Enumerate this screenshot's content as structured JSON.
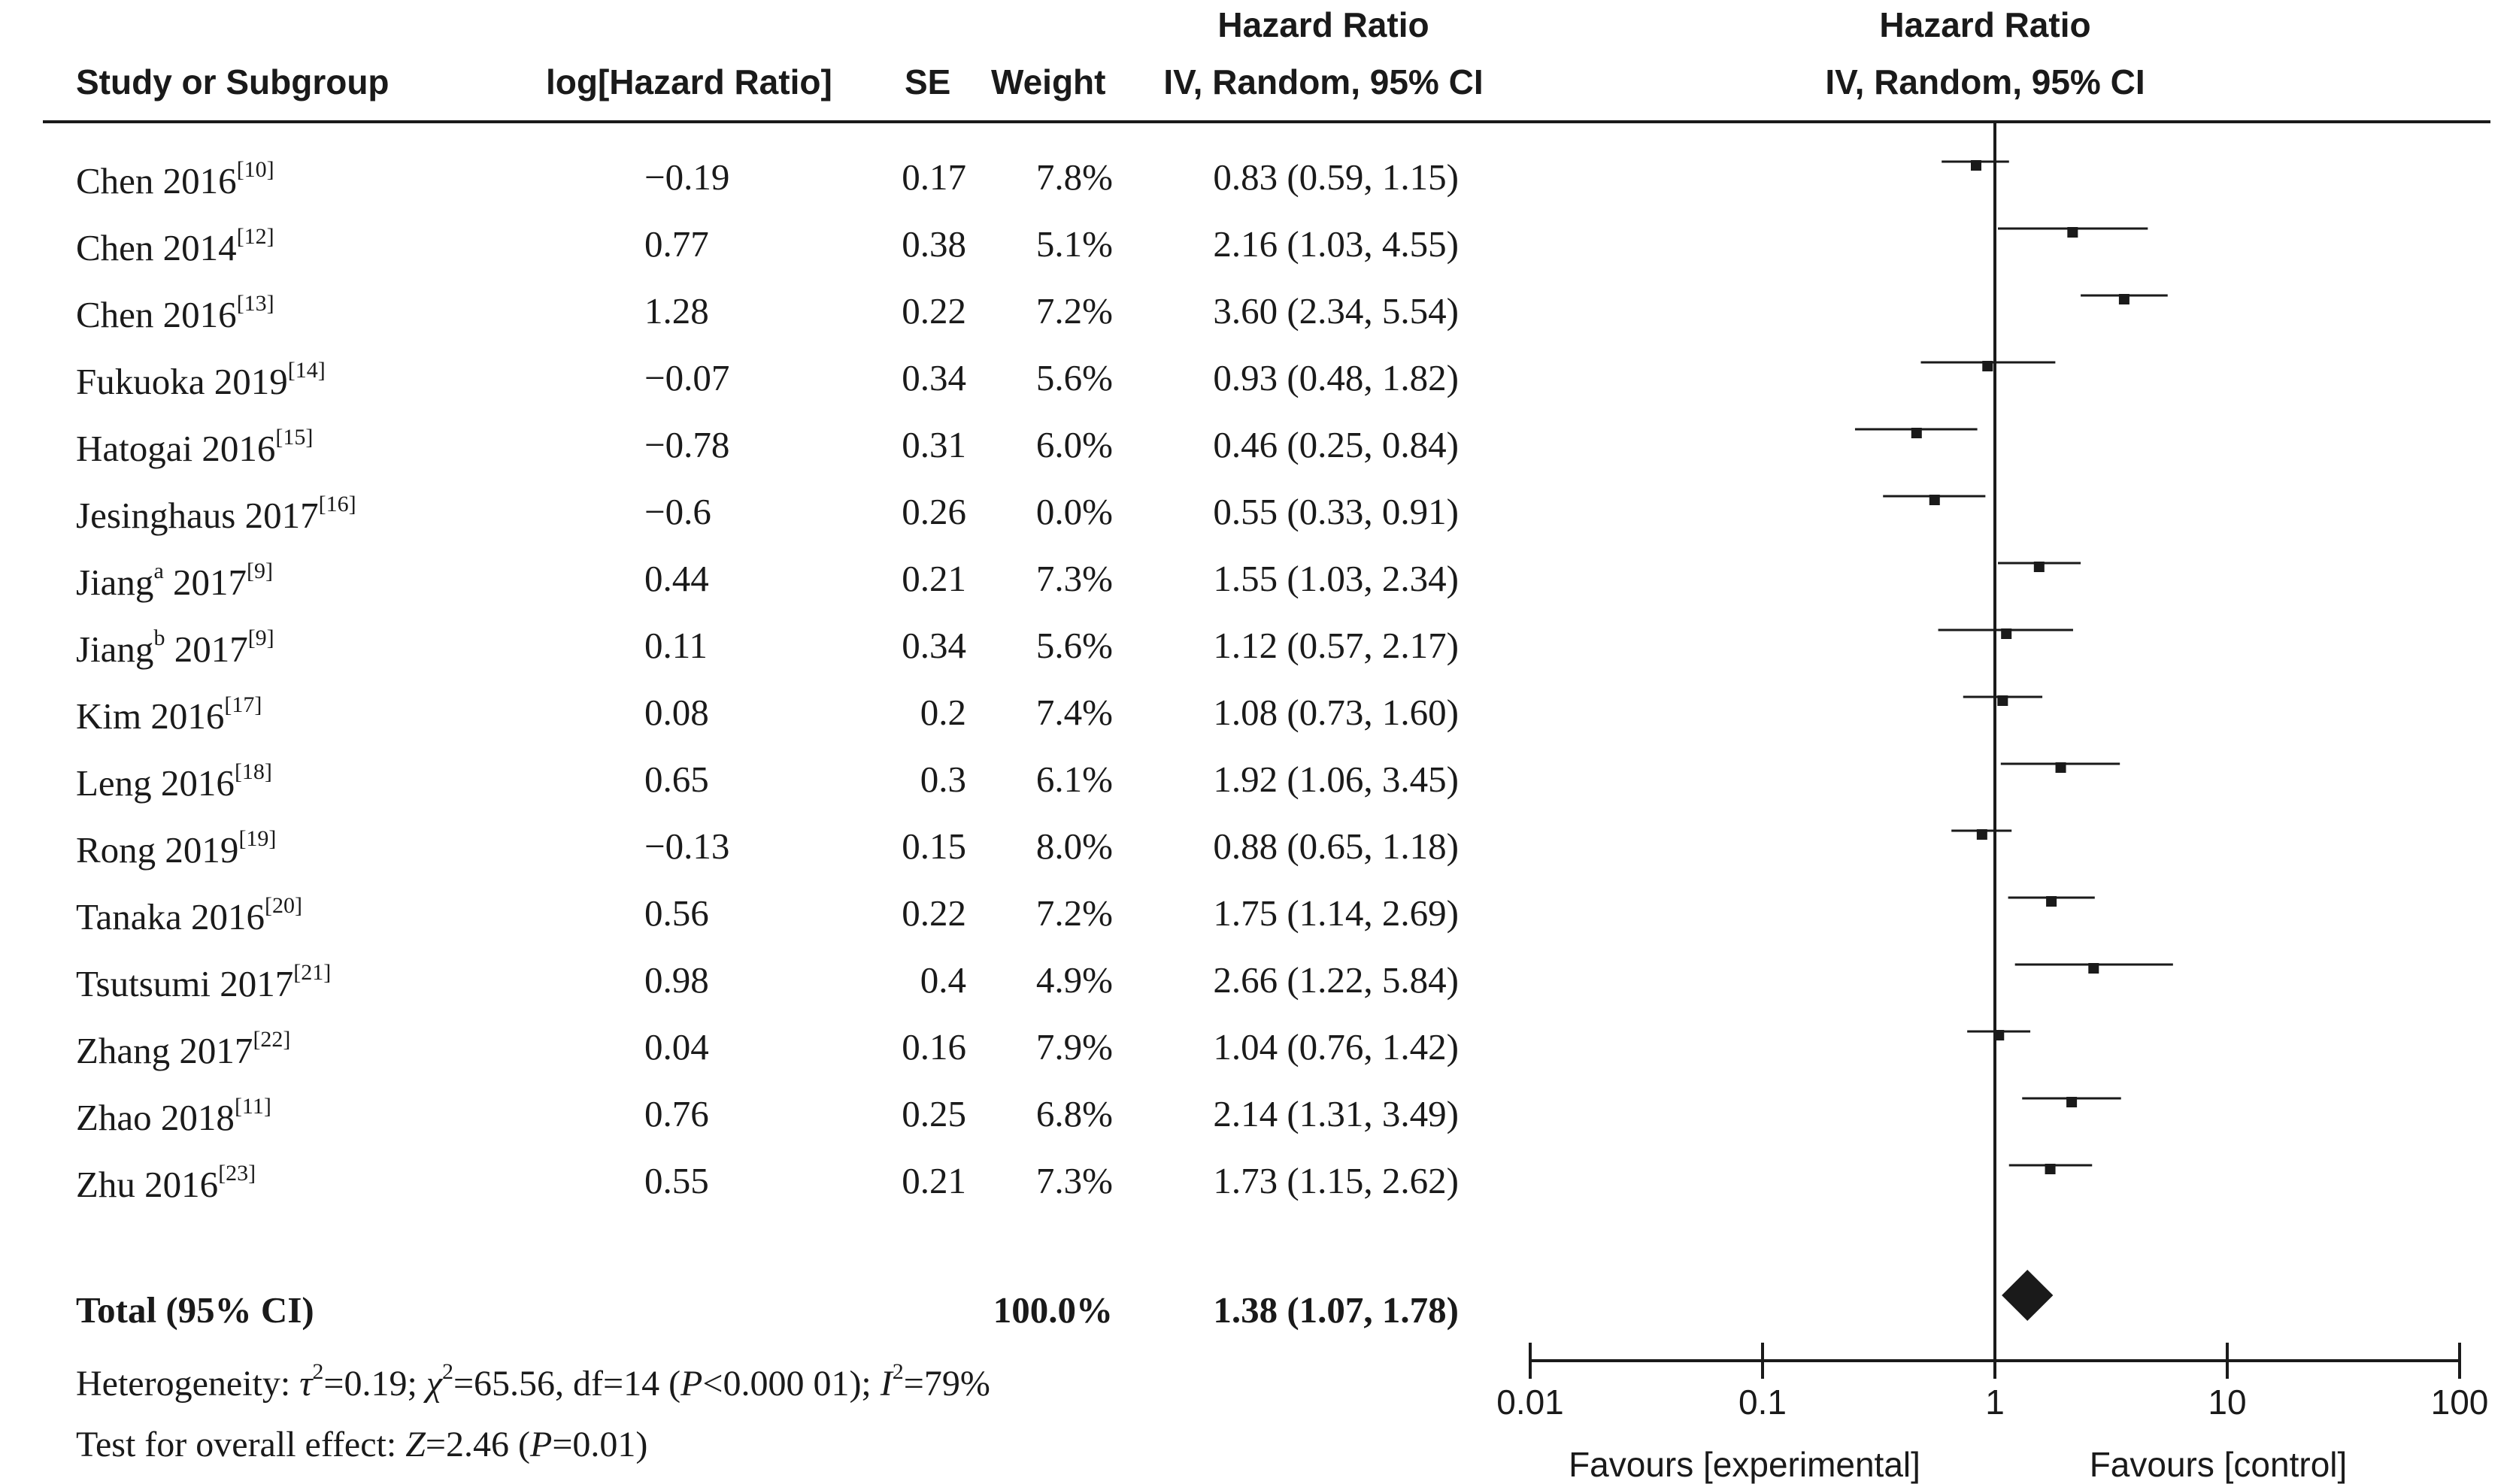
{
  "header": {
    "study": "Study or Subgroup",
    "loghr": "log[Hazard Ratio]",
    "se": "SE",
    "weight": "Weight",
    "hr_title": "Hazard Ratio",
    "hr_method": "IV, Random, 95% CI",
    "plot_title": "Hazard Ratio",
    "plot_method": "IV, Random, 95% CI"
  },
  "studies": [
    {
      "name": "Chen 2016",
      "ref": "[10]",
      "loghr": "−0.19",
      "se": "0.17",
      "weight": "7.8%",
      "ci_text": "0.83 (0.59, 1.15)",
      "hr": 0.83,
      "lo": 0.59,
      "hi": 1.15
    },
    {
      "name": "Chen 2014",
      "ref": "[12]",
      "loghr": "0.77",
      "se": "0.38",
      "weight": "5.1%",
      "ci_text": "2.16 (1.03, 4.55)",
      "hr": 2.16,
      "lo": 1.03,
      "hi": 4.55
    },
    {
      "name": "Chen 2016",
      "ref": "[13]",
      "loghr": "1.28",
      "se": "0.22",
      "weight": "7.2%",
      "ci_text": "3.60 (2.34, 5.54)",
      "hr": 3.6,
      "lo": 2.34,
      "hi": 5.54
    },
    {
      "name": "Fukuoka 2019",
      "ref": "[14]",
      "loghr": "−0.07",
      "se": "0.34",
      "weight": "5.6%",
      "ci_text": "0.93 (0.48, 1.82)",
      "hr": 0.93,
      "lo": 0.48,
      "hi": 1.82
    },
    {
      "name": "Hatogai 2016",
      "ref": "[15]",
      "loghr": "−0.78",
      "se": "0.31",
      "weight": "6.0%",
      "ci_text": "0.46 (0.25, 0.84)",
      "hr": 0.46,
      "lo": 0.25,
      "hi": 0.84
    },
    {
      "name": "Jesinghaus 2017",
      "ref": "[16]",
      "loghr": "−0.6",
      "se": "0.26",
      "weight": "0.0%",
      "ci_text": "0.55 (0.33, 0.91)",
      "hr": 0.55,
      "lo": 0.33,
      "hi": 0.91
    },
    {
      "name": "Jiang",
      "name_sup": "a",
      "name_tail": " 2017",
      "ref": "[9]",
      "loghr": "0.44",
      "se": "0.21",
      "weight": "7.3%",
      "ci_text": "1.55 (1.03, 2.34)",
      "hr": 1.55,
      "lo": 1.03,
      "hi": 2.34
    },
    {
      "name": "Jiang",
      "name_sup": "b",
      "name_tail": " 2017",
      "ref": "[9]",
      "loghr": "0.11",
      "se": "0.34",
      "weight": "5.6%",
      "ci_text": "1.12 (0.57, 2.17)",
      "hr": 1.12,
      "lo": 0.57,
      "hi": 2.17
    },
    {
      "name": "Kim 2016",
      "ref": "[17]",
      "loghr": "0.08",
      "se": "0.2",
      "weight": "7.4%",
      "ci_text": "1.08 (0.73, 1.60)",
      "hr": 1.08,
      "lo": 0.73,
      "hi": 1.6
    },
    {
      "name": "Leng 2016",
      "ref": "[18]",
      "loghr": "0.65",
      "se": "0.3",
      "weight": "6.1%",
      "ci_text": "1.92 (1.06, 3.45)",
      "hr": 1.92,
      "lo": 1.06,
      "hi": 3.45
    },
    {
      "name": "Rong 2019",
      "ref": "[19]",
      "loghr": "−0.13",
      "se": "0.15",
      "weight": "8.0%",
      "ci_text": "0.88 (0.65, 1.18)",
      "hr": 0.88,
      "lo": 0.65,
      "hi": 1.18
    },
    {
      "name": "Tanaka 2016",
      "ref": "[20]",
      "loghr": "0.56",
      "se": "0.22",
      "weight": "7.2%",
      "ci_text": "1.75 (1.14, 2.69)",
      "hr": 1.75,
      "lo": 1.14,
      "hi": 2.69
    },
    {
      "name": "Tsutsumi 2017",
      "ref": "[21]",
      "loghr": "0.98",
      "se": "0.4",
      "weight": "4.9%",
      "ci_text": "2.66 (1.22, 5.84)",
      "hr": 2.66,
      "lo": 1.22,
      "hi": 5.84
    },
    {
      "name": "Zhang 2017",
      "ref": "[22]",
      "loghr": "0.04",
      "se": "0.16",
      "weight": "7.9%",
      "ci_text": "1.04 (0.76, 1.42)",
      "hr": 1.04,
      "lo": 0.76,
      "hi": 1.42
    },
    {
      "name": "Zhao 2018",
      "ref": "[11]",
      "loghr": "0.76",
      "se": "0.25",
      "weight": "6.8%",
      "ci_text": "2.14 (1.31, 3.49)",
      "hr": 2.14,
      "lo": 1.31,
      "hi": 3.49
    },
    {
      "name": "Zhu 2016",
      "ref": "[23]",
      "loghr": "0.55",
      "se": "0.21",
      "weight": "7.3%",
      "ci_text": "1.73 (1.15, 2.62)",
      "hr": 1.73,
      "lo": 1.15,
      "hi": 2.62
    }
  ],
  "total": {
    "label": "Total (95% CI)",
    "weight": "100.0%",
    "ci_text": "1.38 (1.07, 1.78)",
    "hr": 1.38,
    "lo": 1.07,
    "hi": 1.78
  },
  "heterogeneity": {
    "prefix": "Heterogeneity: ",
    "tau_sym": "τ",
    "tau_rest": "=0.19; ",
    "chi_sym": "χ",
    "chi_rest": "=65.56, df=14 (",
    "p_sym": "P",
    "p_rest": "<0.000 01); ",
    "i_sym": "I",
    "i_rest": "=79%",
    "sq": "2"
  },
  "overall": {
    "prefix": "Test for overall effect: ",
    "z_sym": "Z",
    "z_rest": "=2.46 (",
    "p_sym": "P",
    "p_rest": "=0.01)"
  },
  "axis": {
    "ticks": [
      "0.01",
      "0.1",
      "1",
      "10",
      "100"
    ],
    "left_label": "Favours [experimental]",
    "right_label": "Favours [control]"
  },
  "chart_data": {
    "type": "scatter",
    "xscale": "log",
    "xlim": [
      0.01,
      100
    ],
    "reference_line": 1,
    "points": "studies[].hr with intervals studies[].lo–studies[].hi; pooled diamond at total.hr"
  }
}
